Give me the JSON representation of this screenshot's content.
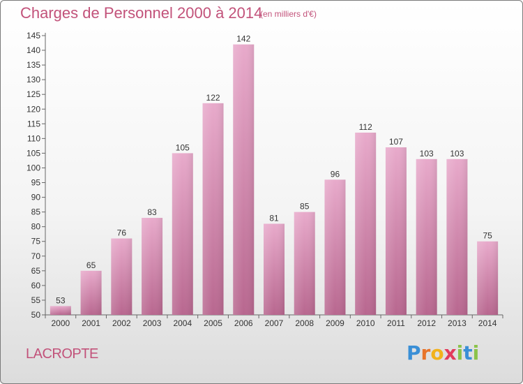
{
  "header": {
    "title": "Charges de Personnel 2000 à 2014",
    "subtitle": "(en milliers d'€)"
  },
  "footer": {
    "commune": "LACROPTE",
    "logo_text": "Proxiti"
  },
  "colors": {
    "bar": "#c86b9b",
    "bar_light": "#e8aacb",
    "text_accent": "#c2527a"
  },
  "chart_data": {
    "type": "bar",
    "title": "Charges de Personnel 2000 à 2014",
    "subtitle": "(en milliers d'€)",
    "xlabel": "",
    "ylabel": "",
    "categories": [
      "2000",
      "2001",
      "2002",
      "2003",
      "2004",
      "2005",
      "2006",
      "2007",
      "2008",
      "2009",
      "2010",
      "2011",
      "2012",
      "2013",
      "2014"
    ],
    "values": [
      53,
      65,
      76,
      83,
      105,
      122,
      142,
      81,
      85,
      96,
      112,
      107,
      103,
      103,
      75
    ],
    "ylim": [
      50,
      145
    ],
    "ytick_step": 5,
    "grid": false,
    "legend": "none"
  }
}
